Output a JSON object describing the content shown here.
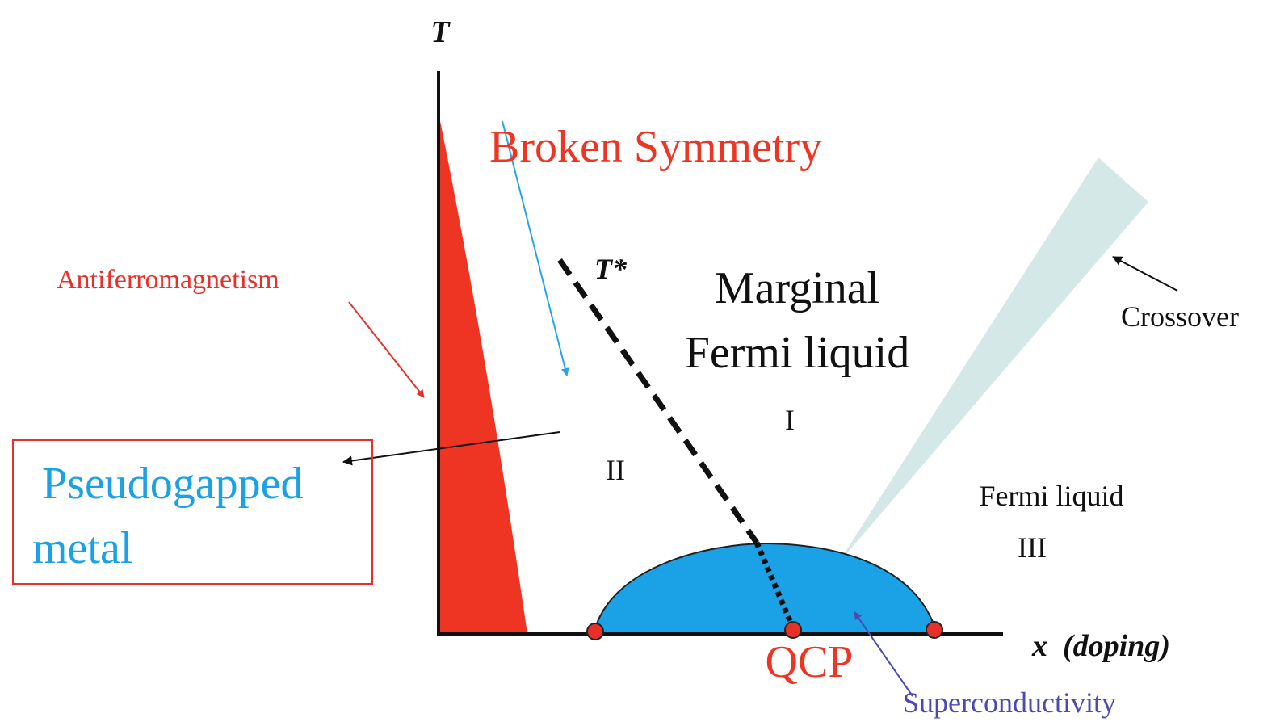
{
  "labels": {
    "y_axis": "T",
    "broken_symmetry": "Broken Symmetry",
    "t_star": "T*",
    "marginal_line1": "Marginal",
    "marginal_line2": "Fermi liquid",
    "antiferromagnetism": "Antiferromagnetism",
    "crossover": "Crossover",
    "region_1": "I",
    "region_2": "II",
    "pseudogapped_line1": "Pseudogapped",
    "pseudogapped_line2": "metal",
    "fermi_liquid": "Fermi liquid",
    "region_3": "III",
    "x_axis": "x  (doping)",
    "qcp": "QCP",
    "superconductivity": "Superconductivity"
  }
}
